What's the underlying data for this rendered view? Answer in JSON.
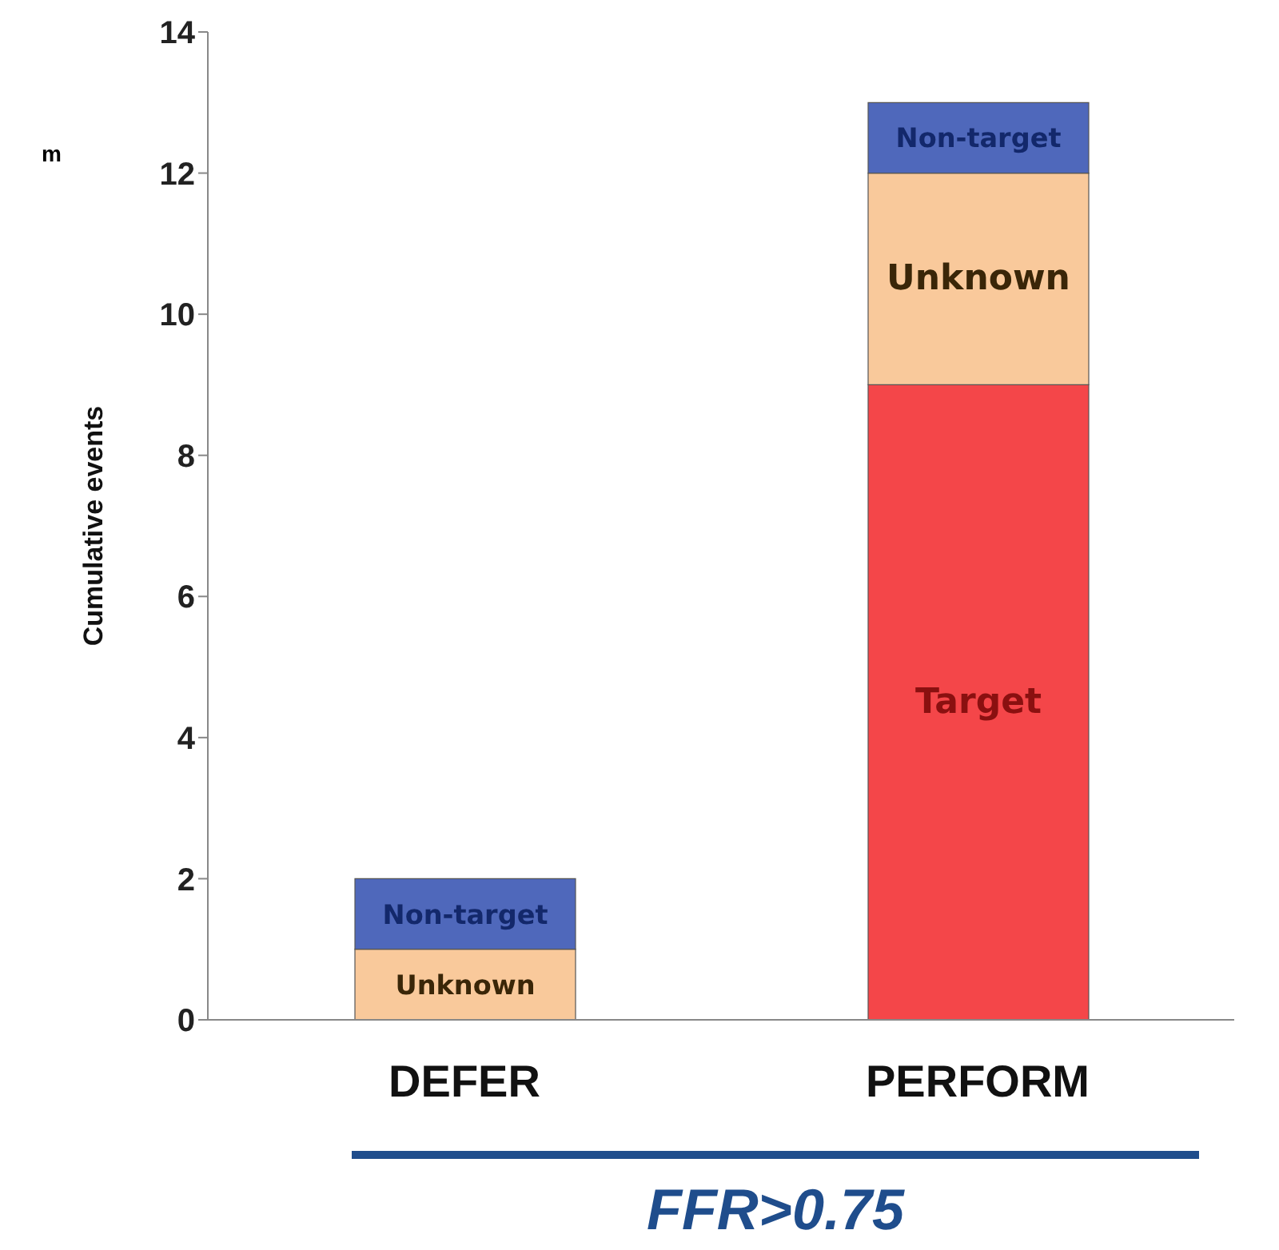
{
  "chart_data": {
    "type": "bar",
    "stacked": true,
    "ylabel": "Cumulative events",
    "xlabel": "FFR>0.75",
    "annotations": [
      "m"
    ],
    "categories": [
      "DEFER",
      "PERFORM"
    ],
    "series": [
      {
        "name": "Target",
        "color": "#f44649",
        "values": [
          0,
          9
        ]
      },
      {
        "name": "Unknown",
        "color": "#f9c99b",
        "values": [
          1,
          3
        ]
      },
      {
        "name": "Non-target",
        "color": "#4f68bb",
        "values": [
          1,
          1
        ]
      }
    ],
    "ylim": [
      0,
      14
    ],
    "yticks": [
      0,
      2,
      4,
      6,
      8,
      10,
      12,
      14
    ],
    "grid": false,
    "legend": false
  }
}
